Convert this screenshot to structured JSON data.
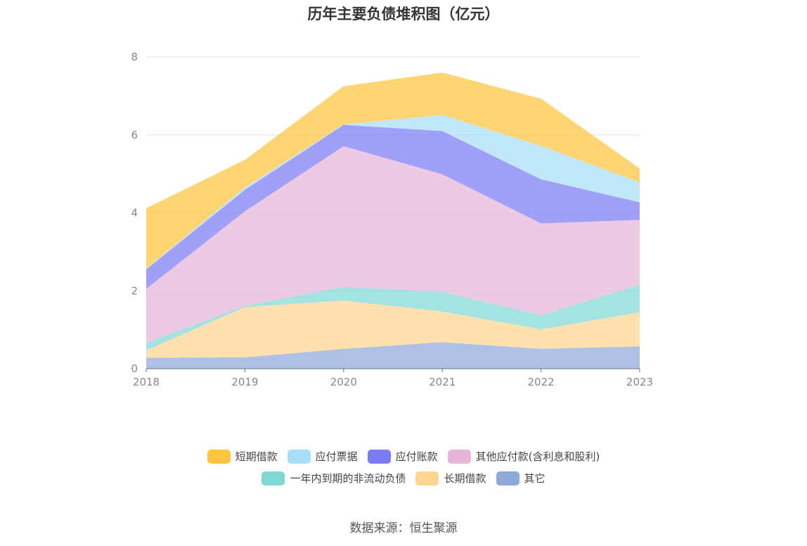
{
  "chart_data": {
    "type": "area",
    "title": "历年主要负债堆积图（亿元）",
    "x": [
      "2018",
      "2019",
      "2020",
      "2021",
      "2022",
      "2023"
    ],
    "ylim": [
      0,
      8
    ],
    "yticks": [
      "0",
      "2",
      "4",
      "6",
      "8"
    ],
    "grid": true,
    "stacked": true,
    "legend_position": "bottom",
    "series": [
      {
        "name": "其它",
        "color": "#8fa9d9",
        "values": [
          0.28,
          0.29,
          0.51,
          0.68,
          0.51,
          0.57
        ]
      },
      {
        "name": "长期借款",
        "color": "#ffd591",
        "values": [
          0.19,
          1.29,
          1.24,
          0.79,
          0.5,
          0.88
        ]
      },
      {
        "name": "一年内到期的非流动负债",
        "color": "#7fd8d6",
        "values": [
          0.19,
          0.03,
          0.35,
          0.5,
          0.36,
          0.7
        ]
      },
      {
        "name": "其他应付款(含利息和股利)",
        "color": "#e6b5d8",
        "values": [
          1.39,
          2.43,
          3.61,
          3.02,
          2.36,
          1.67
        ]
      },
      {
        "name": "应付账款",
        "color": "#7b7cf5",
        "values": [
          0.5,
          0.55,
          0.55,
          1.11,
          1.13,
          0.45
        ]
      },
      {
        "name": "应付票据",
        "color": "#a9def9",
        "values": [
          0.02,
          0.06,
          0.01,
          0.41,
          0.86,
          0.51
        ]
      },
      {
        "name": "短期借款",
        "color": "#ffc53d",
        "values": [
          1.55,
          0.71,
          0.98,
          1.09,
          1.21,
          0.36
        ]
      }
    ]
  },
  "legend": {
    "items": [
      "短期借款",
      "应付票据",
      "应付账款",
      "其他应付款(含利息和股利)",
      "一年内到期的非流动负债",
      "长期借款",
      "其它"
    ]
  },
  "source_text": "数据来源：恒生聚源"
}
